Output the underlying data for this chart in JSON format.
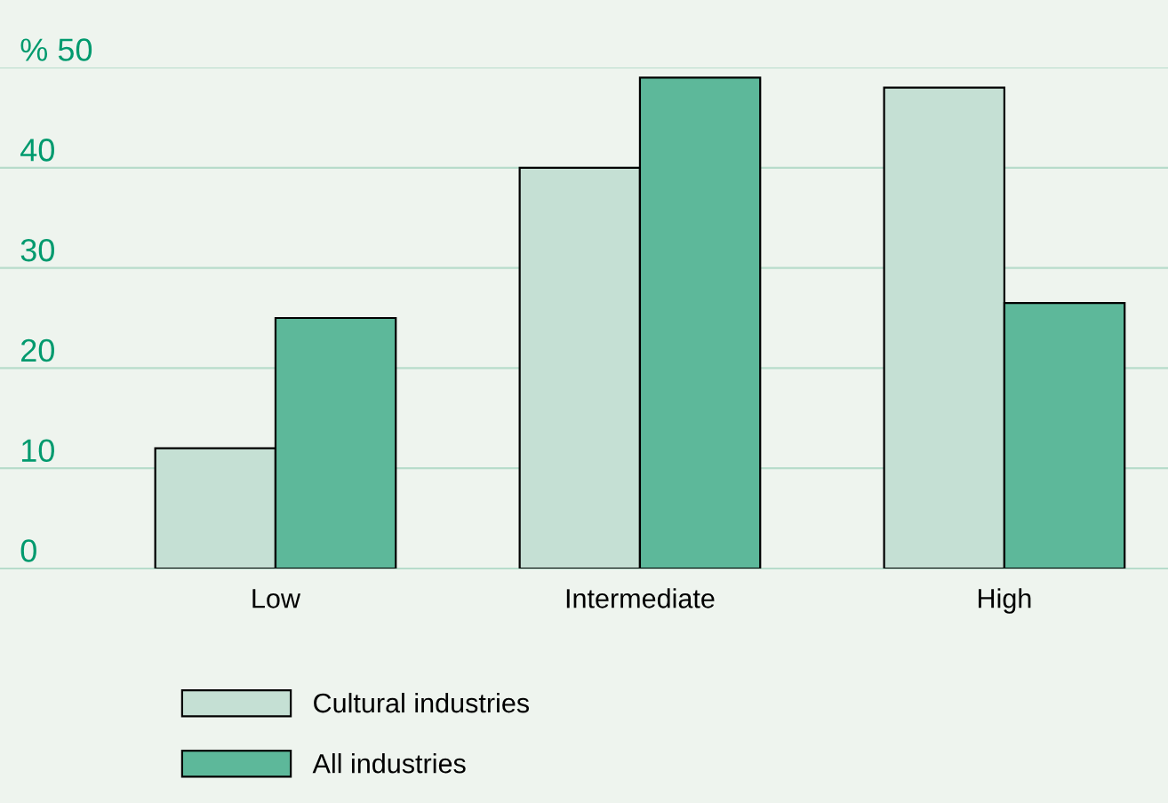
{
  "chart_data": {
    "type": "bar",
    "categories": [
      "Low",
      "Intermediate",
      "High"
    ],
    "series": [
      {
        "name": "Cultural industries",
        "color": "#c5e0d4",
        "values": [
          12,
          40,
          48
        ]
      },
      {
        "name": "All industries",
        "color": "#5db89a",
        "values": [
          25,
          49,
          26.5
        ]
      }
    ],
    "ylim": [
      0,
      50
    ],
    "yticks": [
      0,
      10,
      20,
      30,
      40,
      {
        "value": 50,
        "label": "% 50"
      }
    ],
    "grid": "y",
    "legend": "bottom"
  }
}
